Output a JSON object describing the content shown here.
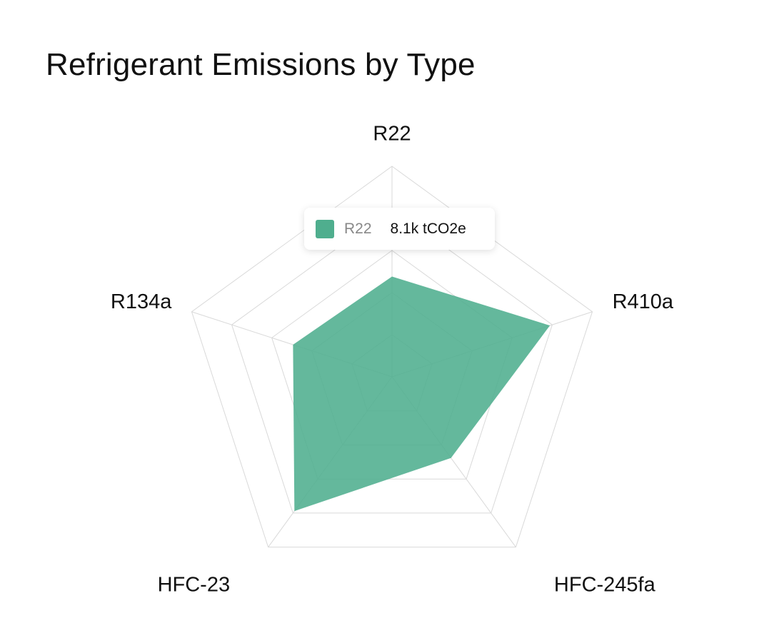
{
  "chart_data": {
    "type": "radar",
    "title": "Refrigerant Emissions by Type",
    "categories": [
      "R22",
      "R410a",
      "HFC-245fa",
      "HFC-23",
      "R134a"
    ],
    "series": [
      {
        "values": [
          8.1,
          13.4,
          8.1,
          13.4,
          8.4
        ],
        "color": "#4fae8e"
      }
    ],
    "rmax": 17,
    "rings": 5,
    "unit": "k tCO2e",
    "grid": true,
    "tooltip": {
      "series_label": "R22",
      "value_label": "8.1k tCO2e"
    }
  }
}
